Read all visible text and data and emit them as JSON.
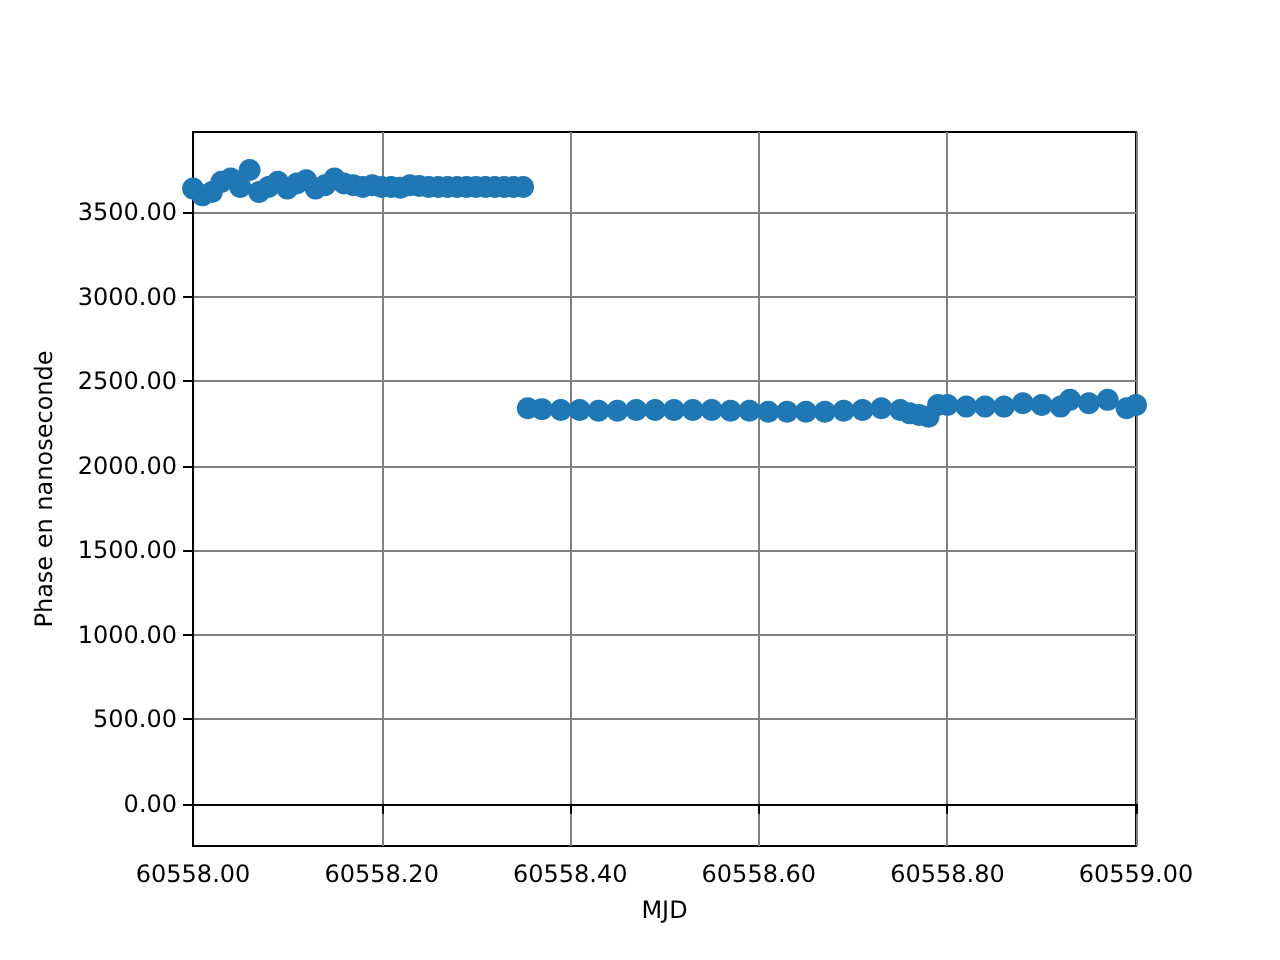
{
  "chart_data": {
    "type": "scatter",
    "xlabel": "MJD",
    "ylabel": "Phase en nanoseconde",
    "marker": "circle",
    "grid": true,
    "xlim": [
      60558,
      60559
    ],
    "xticks": [
      {
        "value": 60558,
        "label": "60558.00"
      },
      {
        "value": 60558.2,
        "label": "60558.20"
      },
      {
        "value": 60558.4,
        "label": "60558.40"
      },
      {
        "value": 60558.6,
        "label": "60558.60"
      },
      {
        "value": 60558.8,
        "label": "60558.80"
      },
      {
        "value": 60559,
        "label": "60559.00"
      }
    ],
    "ylim": [
      -250,
      3975
    ],
    "yticks": [
      {
        "value": 0,
        "label": "0.00"
      },
      {
        "value": 500,
        "label": "500.00"
      },
      {
        "value": 1000,
        "label": "1000.00"
      },
      {
        "value": 1500,
        "label": "1500.00"
      },
      {
        "value": 2000,
        "label": "2000.00"
      },
      {
        "value": 2500,
        "label": "2500.00"
      },
      {
        "value": 3000,
        "label": "3000.00"
      },
      {
        "value": 3500,
        "label": "3500.00"
      }
    ],
    "series": [
      {
        "color": "#1f77b4",
        "x": [
          60558.0,
          60558.01,
          60558.02,
          60558.03,
          60558.04,
          60558.05,
          60558.06,
          60558.07,
          60558.08,
          60558.09,
          60558.1,
          60558.11,
          60558.12,
          60558.13,
          60558.14,
          60558.15,
          60558.16,
          60558.17,
          60558.18,
          60558.19,
          60558.2,
          60558.21,
          60558.22,
          60558.23,
          60558.24,
          60558.25,
          60558.26,
          60558.27,
          60558.28,
          60558.29,
          60558.3,
          60558.31,
          60558.32,
          60558.33,
          60558.34,
          60558.35,
          60558.355,
          60558.37,
          60558.39,
          60558.41,
          60558.43,
          60558.45,
          60558.47,
          60558.49,
          60558.51,
          60558.53,
          60558.55,
          60558.57,
          60558.59,
          60558.61,
          60558.63,
          60558.65,
          60558.67,
          60558.69,
          60558.71,
          60558.73,
          60558.75,
          60558.76,
          60558.77,
          60558.78,
          60558.79,
          60558.8,
          60558.82,
          60558.84,
          60558.86,
          60558.88,
          60558.9,
          60558.92,
          60558.93,
          60558.95,
          60558.97,
          60558.99,
          60559.0
        ],
        "values": [
          3640,
          3600,
          3620,
          3680,
          3700,
          3650,
          3750,
          3620,
          3650,
          3680,
          3640,
          3670,
          3690,
          3640,
          3660,
          3700,
          3670,
          3660,
          3650,
          3660,
          3650,
          3650,
          3645,
          3660,
          3655,
          3650,
          3650,
          3650,
          3650,
          3650,
          3650,
          3650,
          3650,
          3650,
          3650,
          3650,
          2340,
          2335,
          2330,
          2330,
          2325,
          2325,
          2330,
          2330,
          2330,
          2330,
          2330,
          2325,
          2325,
          2320,
          2320,
          2320,
          2320,
          2325,
          2330,
          2340,
          2330,
          2310,
          2300,
          2290,
          2360,
          2360,
          2350,
          2350,
          2350,
          2370,
          2360,
          2350,
          2390,
          2370,
          2390,
          2340,
          2360
        ]
      }
    ]
  }
}
